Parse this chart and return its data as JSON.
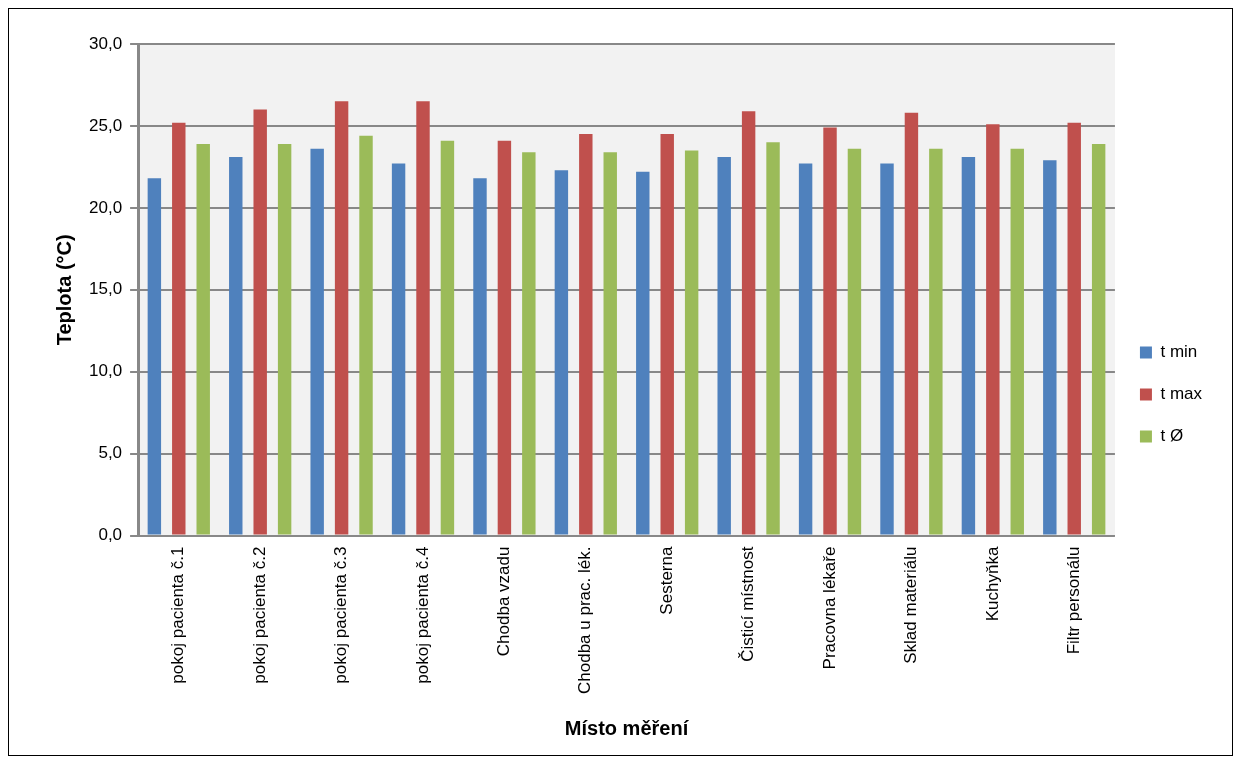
{
  "chart_data": {
    "type": "bar",
    "xlabel": "Místo měření",
    "ylabel": "Teplota (°C)",
    "categories": [
      "pokoj pacienta č.1",
      "pokoj pacienta č.2",
      "pokoj pacienta č.3",
      "pokoj pacienta č.4",
      "Chodba vzadu",
      "Chodba u prac. lék.",
      "Sesterna",
      "Čisticí místnost",
      "Pracovna lékaře",
      "Sklad materiálu",
      "Kuchyňka",
      "Filtr personálu"
    ],
    "series": [
      {
        "name": "t min",
        "color": "#4f81bd",
        "values": [
          21.8,
          23.1,
          23.6,
          22.7,
          21.8,
          22.3,
          22.2,
          23.1,
          22.7,
          22.7,
          23.1,
          22.9
        ]
      },
      {
        "name": "t max",
        "color": "#c0504d",
        "values": [
          25.2,
          26.0,
          26.5,
          26.5,
          24.1,
          24.5,
          24.5,
          25.9,
          24.9,
          25.8,
          25.1,
          25.2
        ]
      },
      {
        "name": "t Ø",
        "color": "#9bbb59",
        "values": [
          23.9,
          23.9,
          24.4,
          24.1,
          23.4,
          23.4,
          23.5,
          24.0,
          23.6,
          23.6,
          23.6,
          23.9
        ]
      }
    ],
    "ylim": [
      0,
      30
    ],
    "yticks": [
      {
        "value": 0,
        "label": "0,0"
      },
      {
        "value": 5,
        "label": "5,0"
      },
      {
        "value": 10,
        "label": "10,0"
      },
      {
        "value": 15,
        "label": "15,0"
      },
      {
        "value": 20,
        "label": "20,0"
      },
      {
        "value": 25,
        "label": "25,0"
      },
      {
        "value": 30,
        "label": "30,0"
      }
    ],
    "grid": "y",
    "legend": "right"
  }
}
